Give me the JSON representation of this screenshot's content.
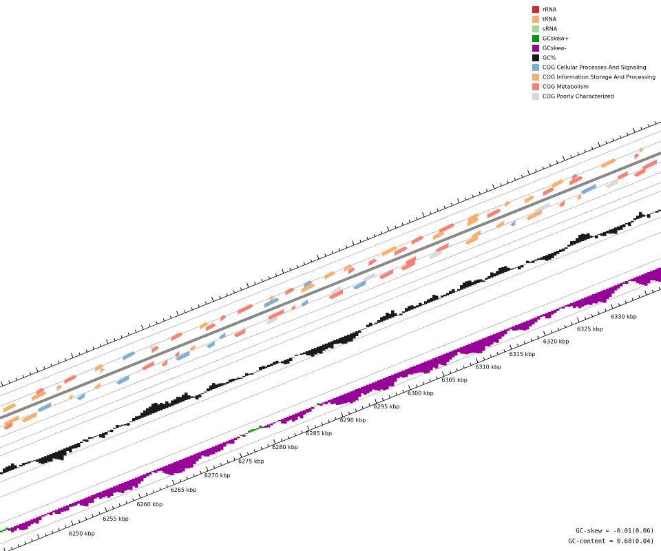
{
  "legend": [
    {
      "label": "rRNA",
      "color": "#d62728"
    },
    {
      "label": "tRNA",
      "color": "#fdae6b"
    },
    {
      "label": "sRNA",
      "color": "#a1d99b"
    },
    {
      "label": "GCskew+",
      "color": "#009900"
    },
    {
      "label": "GCskew-",
      "color": "#990099"
    },
    {
      "label": "GC%",
      "color": "#1a1a1a"
    },
    {
      "label": "COG Cellular Processes And Signaling",
      "color": "#7fafd6"
    },
    {
      "label": "COG Information Storage And Processing",
      "color": "#fdae6b"
    },
    {
      "label": "COG Metabolism",
      "color": "#fb8072"
    },
    {
      "label": "COG Poorly Characterized",
      "color": "#d9d9d9"
    }
  ],
  "ticks": [
    "6250 kbp",
    "6255 kbp",
    "6260 kbp",
    "6265 kbp",
    "6270 kbp",
    "6275 kbp",
    "6280 kbp",
    "6285 kbp",
    "6290 kbp",
    "6295 kbp",
    "6300 kbp",
    "6305 kbp",
    "6310 kbp",
    "6315 kbp",
    "6320 kbp",
    "6325 kbp",
    "6330 kbp"
  ],
  "stats": [
    "GC-skew = -0.01(0.06)",
    "GC-content = 0.68(0.04)"
  ]
}
